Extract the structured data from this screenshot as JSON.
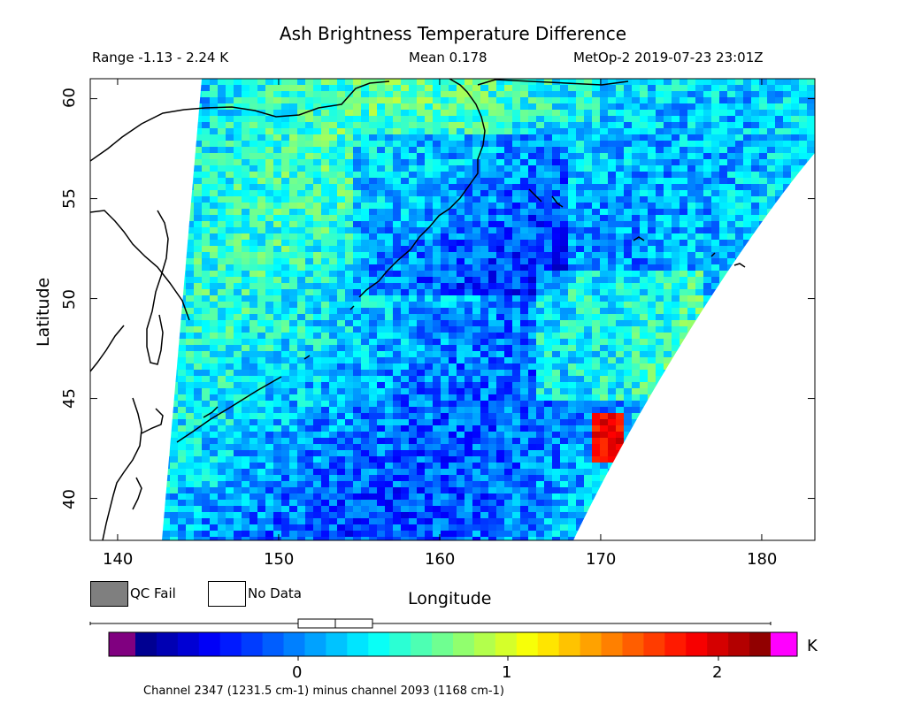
{
  "title": "Ash Brightness Temperature Difference",
  "header": {
    "range": "Range -1.13 - 2.24 K",
    "mean": "Mean 0.178",
    "satellite": "MetOp-2 2019-07-23 23:01Z"
  },
  "axes": {
    "xlabel": "Longitude",
    "ylabel": "Latitude",
    "xticks": [
      "140",
      "150",
      "160",
      "170",
      "180"
    ],
    "yticks": [
      "60",
      "55",
      "50",
      "45",
      "40"
    ],
    "xlim": [
      138.3,
      183.3
    ],
    "ylim": [
      37.9,
      61.0
    ]
  },
  "legend": {
    "qc_fail": "QC Fail",
    "no_data": "No Data",
    "qc_fail_color": "#7f7f7f",
    "no_data_color": "#ffffff"
  },
  "colorbar": {
    "ticks": [
      "0",
      "1",
      "2"
    ],
    "unit": "K",
    "caption": "Channel 2347 (1231.5 cm-1) minus channel 2093 (1168 cm-1)",
    "under_color": "#800080",
    "over_color": "#ff00ff",
    "range": [
      -0.58,
      2.24
    ],
    "mean_box": [
      0.0,
      0.178,
      0.35
    ]
  },
  "colors": {
    "coastline": "#000000",
    "swath_base": "#33aaff"
  }
}
